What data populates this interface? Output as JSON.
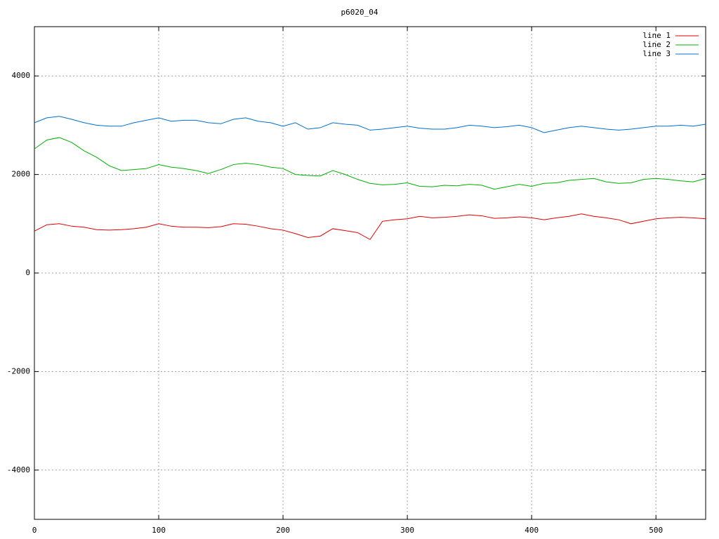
{
  "chart_data": {
    "type": "line",
    "title": "p6020_04",
    "x": [
      0,
      10,
      20,
      30,
      40,
      50,
      60,
      70,
      80,
      90,
      100,
      110,
      120,
      130,
      140,
      150,
      160,
      170,
      180,
      190,
      200,
      210,
      220,
      230,
      240,
      250,
      260,
      270,
      280,
      290,
      300,
      310,
      320,
      330,
      340,
      350,
      360,
      370,
      380,
      390,
      400,
      410,
      420,
      430,
      440,
      450,
      460,
      470,
      480,
      490,
      500,
      510,
      520,
      530,
      540
    ],
    "series": [
      {
        "name": "line 1",
        "color": "#e00000",
        "values": [
          850,
          980,
          1000,
          950,
          930,
          880,
          870,
          880,
          900,
          930,
          1000,
          950,
          930,
          930,
          920,
          940,
          1000,
          990,
          950,
          900,
          870,
          800,
          720,
          750,
          900,
          860,
          820,
          680,
          1050,
          1080,
          1100,
          1150,
          1120,
          1130,
          1150,
          1180,
          1160,
          1110,
          1120,
          1140,
          1120,
          1080,
          1120,
          1150,
          1200,
          1150,
          1120,
          1080,
          1000,
          1050,
          1100,
          1120,
          1130,
          1120,
          1100
        ]
      },
      {
        "name": "line 2",
        "color": "#00b000",
        "values": [
          2520,
          2700,
          2750,
          2650,
          2480,
          2350,
          2180,
          2080,
          2100,
          2120,
          2200,
          2150,
          2120,
          2080,
          2020,
          2100,
          2200,
          2230,
          2200,
          2150,
          2120,
          2000,
          1980,
          1970,
          2080,
          2000,
          1900,
          1820,
          1790,
          1800,
          1830,
          1760,
          1750,
          1780,
          1770,
          1800,
          1780,
          1700,
          1750,
          1800,
          1760,
          1820,
          1830,
          1880,
          1900,
          1920,
          1850,
          1820,
          1830,
          1900,
          1920,
          1900,
          1870,
          1850,
          1920
        ]
      },
      {
        "name": "line 3",
        "color": "#0070d0",
        "values": [
          3050,
          3150,
          3180,
          3120,
          3050,
          3000,
          2980,
          2980,
          3050,
          3100,
          3150,
          3080,
          3100,
          3100,
          3050,
          3030,
          3120,
          3150,
          3080,
          3050,
          2980,
          3050,
          2920,
          2950,
          3050,
          3020,
          3000,
          2900,
          2920,
          2950,
          2980,
          2940,
          2920,
          2920,
          2950,
          3000,
          2980,
          2950,
          2970,
          3000,
          2950,
          2850,
          2900,
          2950,
          2980,
          2950,
          2920,
          2900,
          2920,
          2950,
          2980,
          2980,
          3000,
          2980,
          3020
        ]
      }
    ],
    "xlim": [
      0,
      540
    ],
    "xticks": [
      0,
      100,
      200,
      300,
      400,
      500
    ],
    "ylim": [
      -5000,
      5000
    ],
    "yticks": [
      -4000,
      -2000,
      0,
      2000,
      4000
    ],
    "grid": true,
    "legend": "top-right"
  }
}
